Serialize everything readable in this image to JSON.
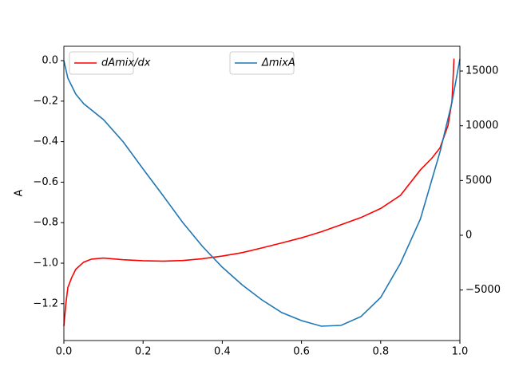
{
  "chart_data": {
    "type": "line",
    "y_label": "A",
    "xlim": [
      0,
      1
    ],
    "xticks": [
      {
        "value": 0,
        "label": "0.0"
      },
      0.2,
      0.4,
      0.6,
      0.8,
      {
        "value": 1,
        "label": "1.0"
      }
    ],
    "ylim": [
      -1.382,
      0.071
    ],
    "yticks": [
      {
        "value": 0,
        "label": "0.0"
      },
      {
        "value": -0.2,
        "label": "−0.2"
      },
      {
        "value": -0.4,
        "label": "−0.4"
      },
      {
        "value": -0.6,
        "label": "−0.6"
      },
      {
        "value": -0.8,
        "label": "−0.8"
      },
      {
        "value": -1,
        "label": "−1.0"
      },
      {
        "value": -1.2,
        "label": "−1.2"
      }
    ],
    "y2lim": [
      -9614,
      17262
    ],
    "y2ticks": [
      {
        "value": -5000,
        "label": "−5000"
      },
      0,
      5000,
      10000,
      15000
    ],
    "series": [
      {
        "name": "dAmix/dx",
        "color": "#ff0000",
        "axis": "y",
        "legend": "upper left",
        "x": [
          0,
          0.005,
          0.01,
          0.02,
          0.03,
          0.05,
          0.07,
          0.1,
          0.15,
          0.2,
          0.25,
          0.3,
          0.35,
          0.4,
          0.45,
          0.5,
          0.55,
          0.6,
          0.65,
          0.7,
          0.75,
          0.8,
          0.85,
          0.9,
          0.93,
          0.95,
          0.97,
          0.98,
          0.985
        ],
        "values": [
          -1.31,
          -1.2,
          -1.12,
          -1.07,
          -1.03,
          -0.995,
          -0.98,
          -0.975,
          -0.983,
          -0.988,
          -0.99,
          -0.987,
          -0.978,
          -0.965,
          -0.948,
          -0.925,
          -0.9,
          -0.875,
          -0.845,
          -0.81,
          -0.775,
          -0.73,
          -0.665,
          -0.54,
          -0.48,
          -0.43,
          -0.32,
          -0.2,
          0.01
        ]
      },
      {
        "name": "ΔmixA",
        "color": "#1f77b4",
        "axis": "y2",
        "legend": "upper center",
        "x": [
          0,
          0.01,
          0.03,
          0.05,
          0.1,
          0.15,
          0.2,
          0.25,
          0.3,
          0.35,
          0.4,
          0.45,
          0.5,
          0.55,
          0.6,
          0.65,
          0.7,
          0.75,
          0.8,
          0.85,
          0.9,
          0.95,
          0.98,
          1.0
        ],
        "values": [
          15950,
          14350,
          12890,
          12020,
          10560,
          8520,
          6050,
          3640,
          1170,
          -1020,
          -2910,
          -4520,
          -5900,
          -7060,
          -7790,
          -8300,
          -8230,
          -7430,
          -5680,
          -2550,
          1460,
          7650,
          12160,
          16100
        ]
      }
    ]
  }
}
